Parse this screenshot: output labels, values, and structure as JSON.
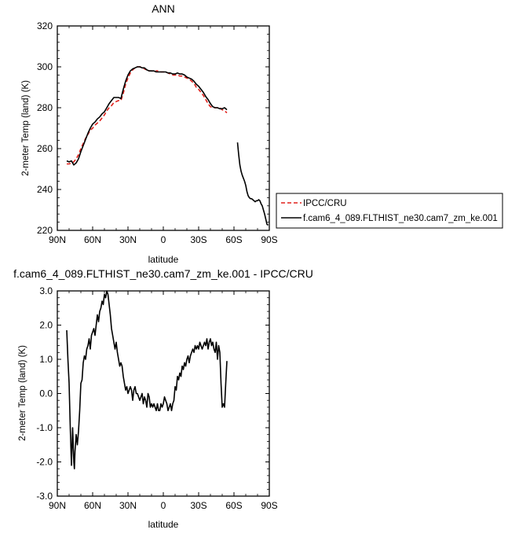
{
  "chart_data": [
    {
      "type": "line",
      "title": "ANN",
      "xlabel": "latitude",
      "ylabel": "2-meter Temp (land) (K)",
      "xlim": [
        90,
        -90
      ],
      "ylim": [
        220,
        320
      ],
      "x_ticks": [
        90,
        60,
        30,
        0,
        -30,
        -60,
        -90
      ],
      "x_tick_labels": [
        "90N",
        "60N",
        "30N",
        "0",
        "30S",
        "60S",
        "90S"
      ],
      "y_ticks": [
        220,
        240,
        260,
        280,
        300,
        320
      ],
      "y_tick_labels": [
        "220",
        "240",
        "260",
        "280",
        "300",
        "320"
      ],
      "grid": false,
      "legend_position": "right, outside plot area",
      "series": [
        {
          "name": "IPCC/CRU",
          "color": "#e0201b",
          "style": "dashed",
          "x": [
            82,
            80,
            78,
            76,
            74,
            72,
            70,
            68,
            66,
            64,
            62,
            60,
            58,
            56,
            54,
            52,
            50,
            48,
            46,
            44,
            42,
            40,
            38,
            36,
            34,
            32,
            30,
            28,
            26,
            24,
            22,
            20,
            18,
            16,
            14,
            12,
            10,
            8,
            6,
            4,
            2,
            0,
            -2,
            -4,
            -6,
            -8,
            -10,
            -12,
            -14,
            -16,
            -18,
            -20,
            -22,
            -24,
            -26,
            -28,
            -30,
            -32,
            -34,
            -36,
            -38,
            -40,
            -42,
            -44,
            -46,
            -48,
            -50,
            -52,
            -54
          ],
          "y": [
            252.5,
            252.5,
            253,
            253.5,
            255,
            257,
            260,
            262.5,
            265,
            267,
            269,
            270,
            271.5,
            272.5,
            273.5,
            275,
            276.5,
            278.5,
            280,
            281,
            282.5,
            283,
            283.5,
            283.5,
            287,
            291.5,
            294.5,
            297,
            298.5,
            299.5,
            300,
            300,
            300,
            299,
            298.5,
            298,
            298,
            297.5,
            298,
            298,
            297.5,
            297.5,
            297.5,
            297,
            296.5,
            296,
            296,
            296,
            295.5,
            295.5,
            295,
            294.5,
            294,
            293,
            292,
            290,
            289,
            287.5,
            286,
            284,
            282,
            280.5,
            280,
            280,
            280,
            280,
            279,
            278.5,
            277.5
          ]
        },
        {
          "name": "f.cam6_4_089.FLTHIST_ne30.cam7_zm_ke.001",
          "color": "#000000",
          "style": "solid",
          "x": [
            82,
            80,
            78,
            76,
            74,
            72,
            70,
            68,
            66,
            64,
            62,
            60,
            58,
            56,
            54,
            52,
            50,
            48,
            46,
            44,
            42,
            40,
            38,
            36,
            34,
            32,
            30,
            28,
            26,
            24,
            22,
            20,
            18,
            16,
            14,
            12,
            10,
            8,
            6,
            4,
            2,
            0,
            -2,
            -4,
            -6,
            -8,
            -10,
            -12,
            -14,
            -16,
            -18,
            -20,
            -22,
            -24,
            -26,
            -28,
            -30,
            -32,
            -34,
            -36,
            -38,
            -40,
            -42,
            -44,
            -46,
            -48,
            -50,
            -52,
            -54,
            null,
            -63,
            -64,
            -65,
            -66,
            -67,
            -68,
            -69,
            -70,
            -71,
            -72,
            -73,
            -74,
            -75,
            -76,
            -77,
            -78,
            -79,
            -80,
            -81,
            -82,
            -83,
            -84,
            -85,
            -86,
            -87,
            -88,
            -89
          ],
          "y": [
            254,
            253.5,
            254,
            252,
            253,
            255,
            258.5,
            261.5,
            264.5,
            267.5,
            270,
            272,
            273,
            274.5,
            275.5,
            277,
            278,
            280,
            282,
            283.5,
            285,
            285,
            285,
            284.5,
            289,
            293,
            296,
            298,
            299,
            299.5,
            300,
            300,
            299.5,
            299.5,
            298.5,
            298,
            298,
            298,
            297.5,
            297.5,
            297.5,
            297.5,
            297.5,
            297,
            297,
            296.5,
            296.5,
            297,
            296.5,
            296.5,
            296,
            295,
            294.5,
            294,
            293,
            291.5,
            290.5,
            289,
            287.5,
            285.5,
            284,
            282,
            280.5,
            280,
            280,
            279.5,
            279.5,
            280,
            279,
            null,
            263,
            257,
            252,
            249,
            247,
            245.5,
            244,
            242,
            239,
            237,
            236,
            235.5,
            235.5,
            235,
            234.5,
            234,
            234.5,
            234.5,
            235,
            234.5,
            233,
            232,
            230,
            228,
            225.5,
            223,
            222.5
          ]
        }
      ]
    },
    {
      "type": "line",
      "title": "f.cam6_4_089.FLTHIST_ne30.cam7_zm_ke.001 - IPCC/CRU",
      "xlabel": "latitude",
      "ylabel": "2-meter Temp (land) (K)",
      "xlim": [
        90,
        -90
      ],
      "ylim": [
        -3,
        3
      ],
      "x_ticks": [
        90,
        60,
        30,
        0,
        -30,
        -60,
        -90
      ],
      "x_tick_labels": [
        "90N",
        "60N",
        "30N",
        "0",
        "30S",
        "60S",
        "90S"
      ],
      "y_ticks": [
        -3,
        -2,
        -1,
        0,
        1,
        2,
        3
      ],
      "y_tick_labels": [
        "-3.0",
        "-2.0",
        "-1.0",
        "0.0",
        "1.0",
        "2.0",
        "3.0"
      ],
      "grid": false,
      "series": [
        {
          "color": "#000000",
          "style": "solid",
          "x": [
            82,
            81,
            80,
            79,
            78,
            77,
            76.5,
            76,
            75.5,
            75,
            74,
            73,
            72,
            71,
            70,
            69,
            68,
            67,
            66,
            65,
            64,
            63,
            62,
            61,
            60,
            59,
            58,
            57,
            56,
            55,
            54,
            53,
            52,
            51,
            50,
            49,
            48,
            47,
            46,
            45,
            44,
            43,
            42,
            41,
            40,
            39,
            38,
            37,
            36,
            35,
            34,
            33,
            32,
            31,
            30,
            29,
            28,
            27,
            26,
            25,
            24,
            23,
            22,
            21,
            20,
            19,
            18,
            17,
            16,
            15,
            14,
            13,
            12,
            11,
            10,
            9,
            8,
            7,
            6,
            5,
            4,
            3,
            2,
            1,
            0,
            -1,
            -2,
            -3,
            -4,
            -5,
            -6,
            -7,
            -8,
            -9,
            -10,
            -11,
            -12,
            -13,
            -14,
            -15,
            -16,
            -17,
            -18,
            -19,
            -20,
            -21,
            -22,
            -23,
            -24,
            -25,
            -26,
            -27,
            -28,
            -29,
            -30,
            -31,
            -32,
            -33,
            -34,
            -35,
            -36,
            -37,
            -38,
            -39,
            -40,
            -41,
            -42,
            -43,
            -44,
            -45,
            -46,
            -47,
            -48,
            -49,
            -50,
            -51,
            -52,
            -53,
            -54
          ],
          "y": [
            1.85,
            1.0,
            0.3,
            -1.0,
            -2.1,
            -1.0,
            -1.5,
            -2.0,
            -2.2,
            -1.7,
            -1.2,
            -1.5,
            -1.1,
            -0.5,
            0.3,
            0.4,
            0.9,
            1.1,
            1.0,
            1.3,
            1.4,
            1.6,
            1.3,
            1.7,
            1.8,
            1.9,
            1.7,
            2.0,
            2.3,
            2.1,
            2.4,
            2.5,
            2.7,
            2.6,
            2.9,
            2.8,
            3.0,
            2.9,
            2.6,
            2.3,
            1.9,
            1.7,
            1.5,
            1.3,
            1.5,
            1.2,
            1.0,
            0.8,
            0.9,
            0.8,
            0.5,
            0.3,
            0.1,
            0.2,
            0.0,
            0.1,
            0.2,
            0.1,
            -0.2,
            0.1,
            0.2,
            0.0,
            0.0,
            -0.1,
            -0.2,
            -0.1,
            0.0,
            -0.3,
            -0.1,
            -0.2,
            -0.4,
            0.0,
            -0.1,
            -0.4,
            -0.3,
            -0.4,
            -0.3,
            -0.4,
            -0.5,
            -0.3,
            -0.5,
            -0.5,
            -0.3,
            -0.4,
            -0.3,
            -0.1,
            -0.2,
            -0.3,
            -0.5,
            -0.4,
            -0.3,
            -0.5,
            -0.3,
            -0.2,
            0.2,
            0.1,
            0.5,
            0.4,
            0.6,
            0.5,
            0.8,
            0.7,
            0.9,
            0.8,
            1.0,
            1.1,
            0.9,
            1.1,
            1.2,
            1.3,
            1.2,
            1.4,
            1.3,
            1.4,
            1.3,
            1.5,
            1.4,
            1.3,
            1.4,
            1.5,
            1.4,
            1.6,
            1.3,
            1.5,
            1.6,
            1.4,
            1.5,
            1.3,
            1.2,
            1.5,
            1.0,
            1.4,
            1.2,
            0.3,
            -0.4,
            -0.3,
            -0.4,
            0.3,
            0.95
          ]
        }
      ]
    }
  ]
}
